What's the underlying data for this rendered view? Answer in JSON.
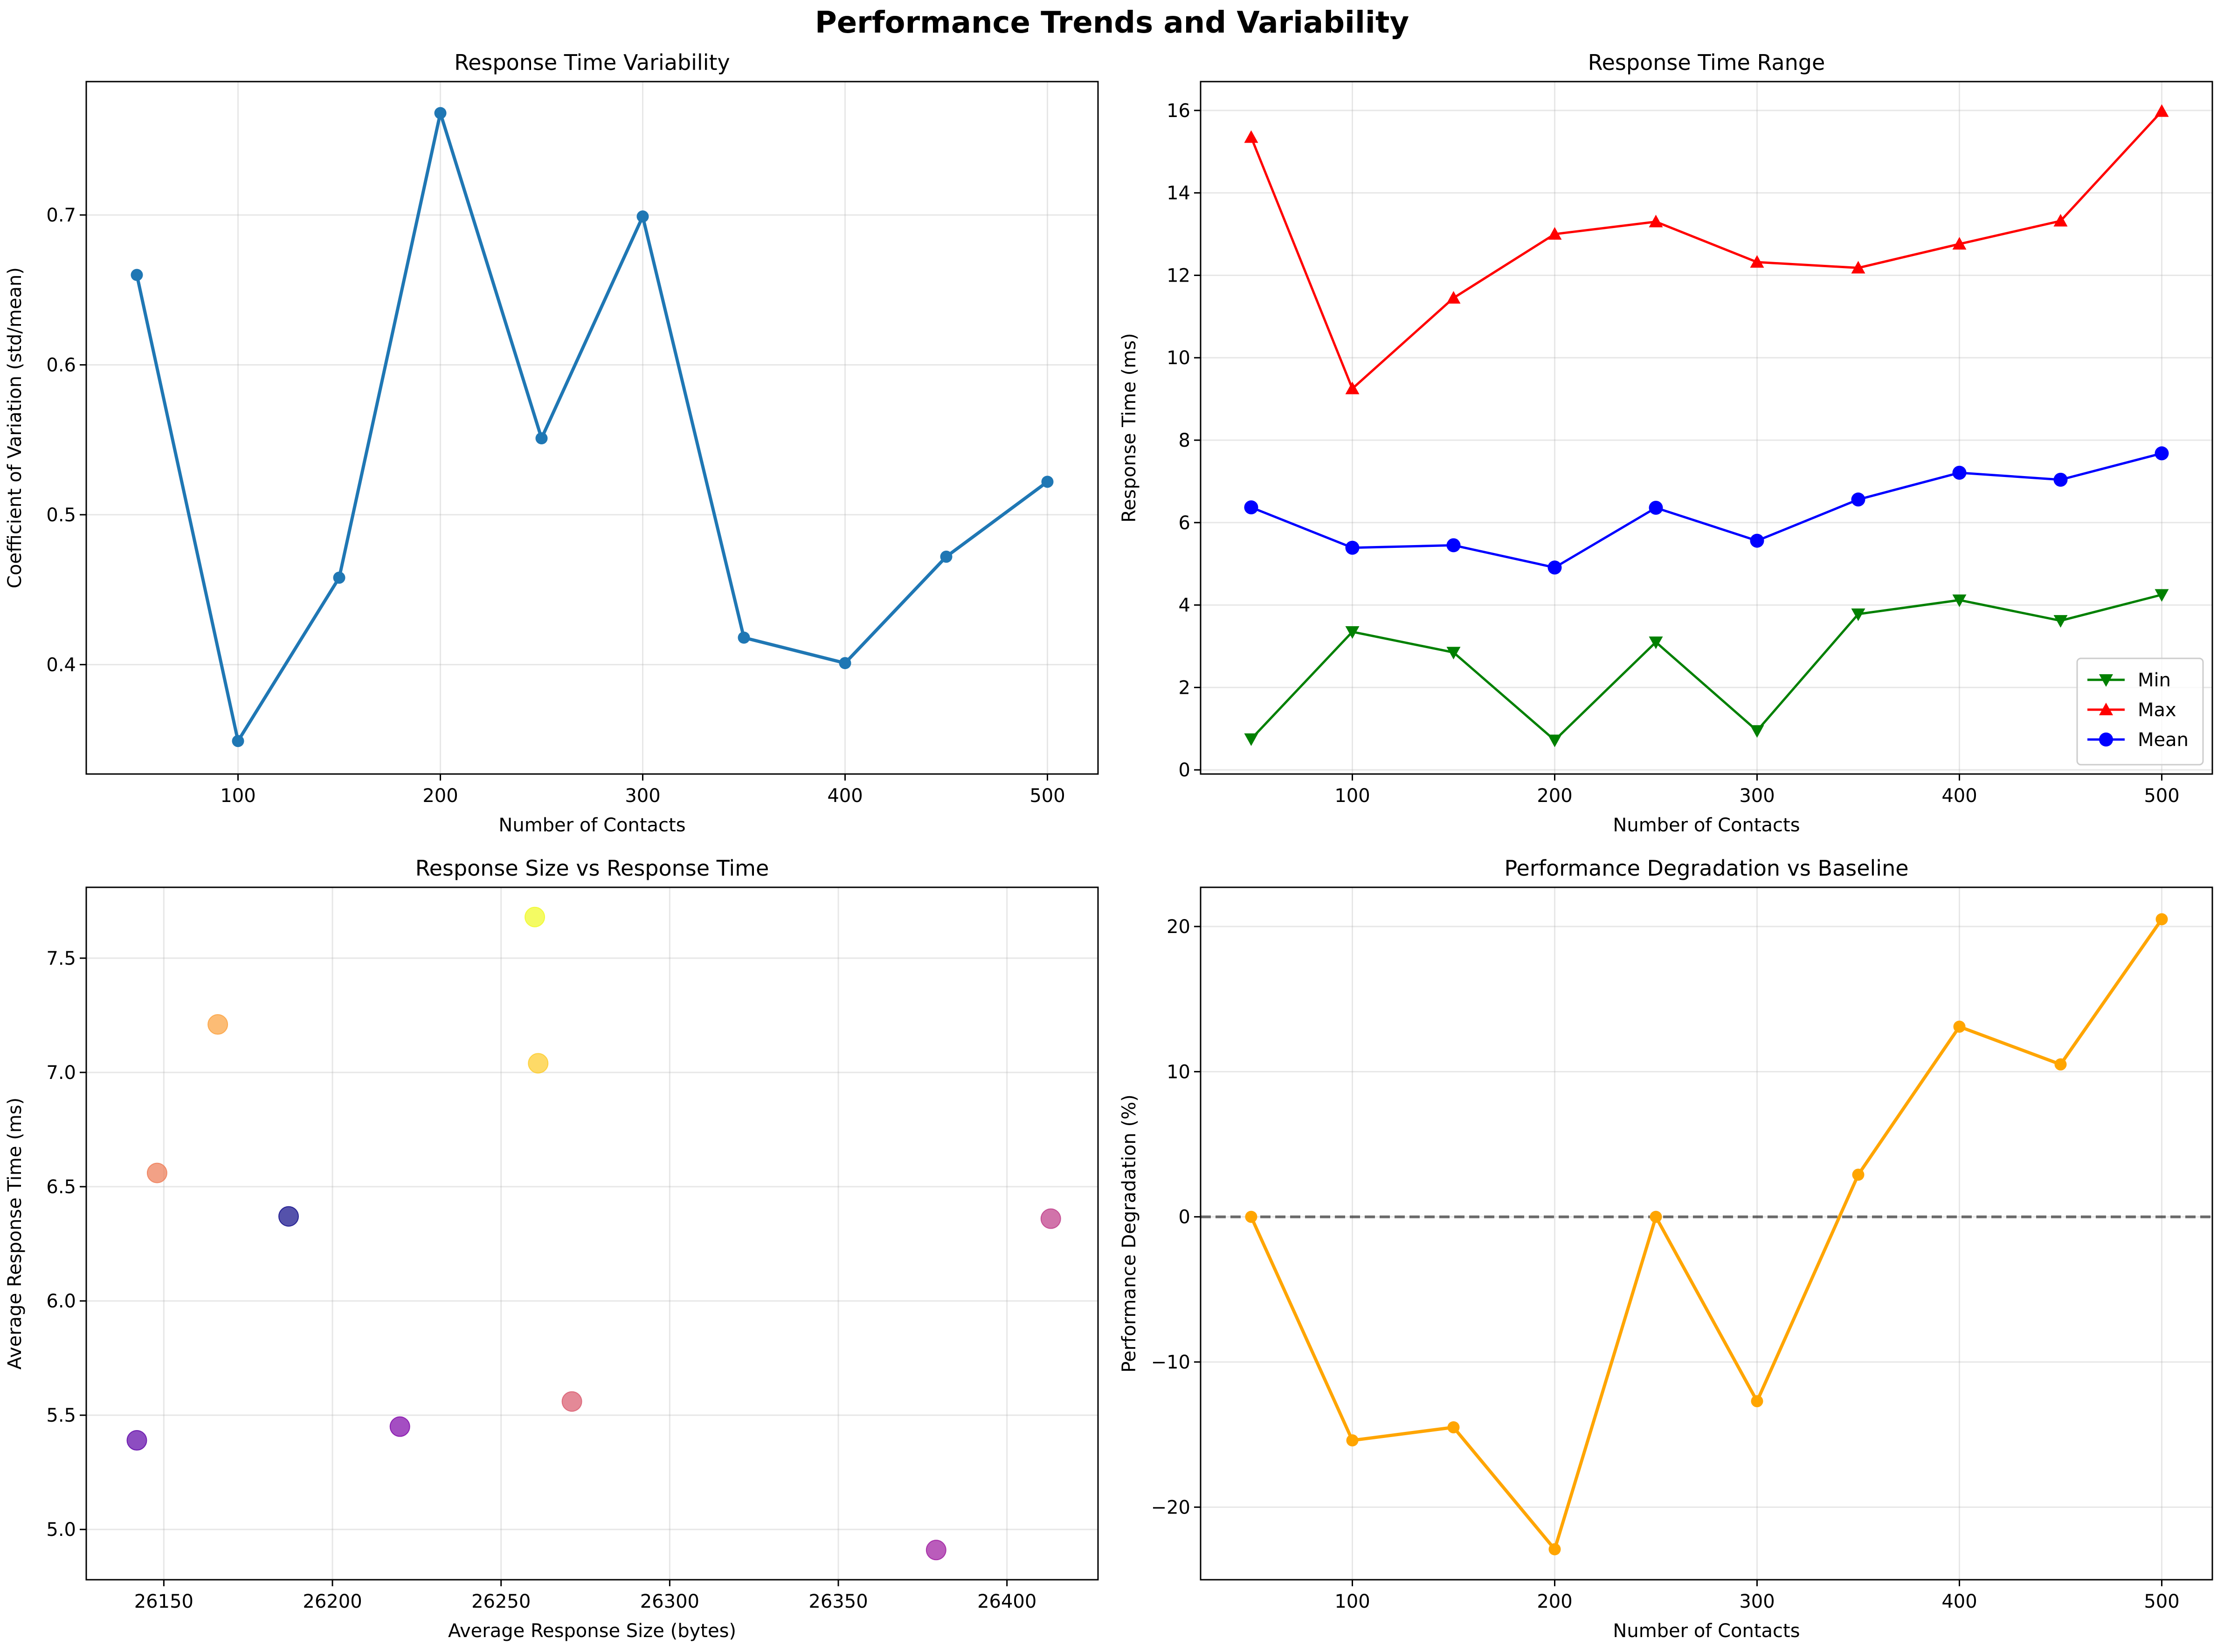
{
  "figure": {
    "title": "Performance Trends and Variability"
  },
  "chart_data": [
    {
      "type": "line",
      "title": "Response Time Variability",
      "xlabel": "Number of Contacts",
      "ylabel": "Coefficient of Variation (std/mean)",
      "xlim": [
        25,
        525
      ],
      "ylim": [
        0.327,
        0.789
      ],
      "xticks": [
        100,
        200,
        300,
        400,
        500
      ],
      "yticks": [
        0.4,
        0.5,
        0.6,
        0.7
      ],
      "grid": true,
      "color": "#1f77b4",
      "x": [
        50,
        100,
        150,
        200,
        250,
        300,
        350,
        400,
        450,
        500
      ],
      "series": [
        {
          "values": [
            0.66,
            0.349,
            0.458,
            0.768,
            0.551,
            0.699,
            0.418,
            0.401,
            0.472,
            0.522
          ]
        }
      ]
    },
    {
      "type": "line",
      "title": "Response Time Range",
      "xlabel": "Number of Contacts",
      "ylabel": "Response Time (ms)",
      "xlim": [
        25,
        525
      ],
      "ylim": [
        -0.1,
        16.7
      ],
      "xticks": [
        100,
        200,
        300,
        400,
        500
      ],
      "yticks": [
        0,
        2,
        4,
        6,
        8,
        10,
        12,
        14,
        16
      ],
      "grid": true,
      "legend": "lower-right",
      "x": [
        50,
        100,
        150,
        200,
        250,
        300,
        350,
        400,
        450,
        500
      ],
      "series": [
        {
          "name": "Min",
          "color": "#008000",
          "marker": "triangle-down",
          "values": [
            0.75,
            3.35,
            2.85,
            0.72,
            3.1,
            0.95,
            3.78,
            4.12,
            3.62,
            4.25
          ]
        },
        {
          "name": "Max",
          "color": "#ff0000",
          "marker": "triangle-up",
          "values": [
            15.35,
            9.25,
            11.45,
            13.0,
            13.3,
            12.32,
            12.18,
            12.76,
            13.32,
            15.98
          ]
        },
        {
          "name": "Mean",
          "color": "#0000ff",
          "marker": "circle",
          "values": [
            6.37,
            5.39,
            5.45,
            4.91,
            6.36,
            5.56,
            6.56,
            7.21,
            7.04,
            7.68
          ]
        }
      ]
    },
    {
      "type": "scatter",
      "title": "Response Size vs Response Time",
      "xlabel": "Average Response Size (bytes)",
      "ylabel": "Average Response Time (ms)",
      "xlim": [
        26127,
        26427
      ],
      "ylim": [
        4.78,
        7.81
      ],
      "xticks": [
        26150,
        26200,
        26250,
        26300,
        26350,
        26400
      ],
      "yticks": [
        5.0,
        5.5,
        6.0,
        6.5,
        7.0,
        7.5
      ],
      "ytick_labels": [
        "5.0",
        "5.5",
        "6.0",
        "6.5",
        "7.0",
        "7.5"
      ],
      "grid": true,
      "points": [
        {
          "x": 26187,
          "y": 6.37,
          "color": "#0d0887"
        },
        {
          "x": 26142,
          "y": 5.39,
          "color": "#5c01a6"
        },
        {
          "x": 26220,
          "y": 5.45,
          "color": "#7e03a8"
        },
        {
          "x": 26379,
          "y": 4.91,
          "color": "#9c179e"
        },
        {
          "x": 26413,
          "y": 6.36,
          "color": "#bd3786"
        },
        {
          "x": 26271,
          "y": 5.56,
          "color": "#d8576b"
        },
        {
          "x": 26148,
          "y": 6.56,
          "color": "#ed7953"
        },
        {
          "x": 26166,
          "y": 7.21,
          "color": "#fb9f3a"
        },
        {
          "x": 26261,
          "y": 7.04,
          "color": "#fdca26"
        },
        {
          "x": 26260,
          "y": 7.68,
          "color": "#f0f921"
        }
      ]
    },
    {
      "type": "line",
      "title": "Performance Degradation vs Baseline",
      "xlabel": "Number of Contacts",
      "ylabel": "Performance Degradation (%)",
      "xlim": [
        25,
        525
      ],
      "ylim": [
        -25,
        22.7
      ],
      "xticks": [
        100,
        200,
        300,
        400,
        500
      ],
      "yticks": [
        -20,
        -10,
        0,
        10,
        20
      ],
      "ytick_labels": [
        "−20",
        "−10",
        "0",
        "10",
        "20"
      ],
      "grid": true,
      "color": "#ffa500",
      "baseline": 0,
      "x": [
        50,
        100,
        150,
        200,
        250,
        300,
        350,
        400,
        450,
        500
      ],
      "series": [
        {
          "values": [
            0,
            -15.4,
            -14.5,
            -22.9,
            0,
            -12.7,
            2.9,
            13.1,
            10.5,
            20.5
          ]
        }
      ]
    }
  ]
}
